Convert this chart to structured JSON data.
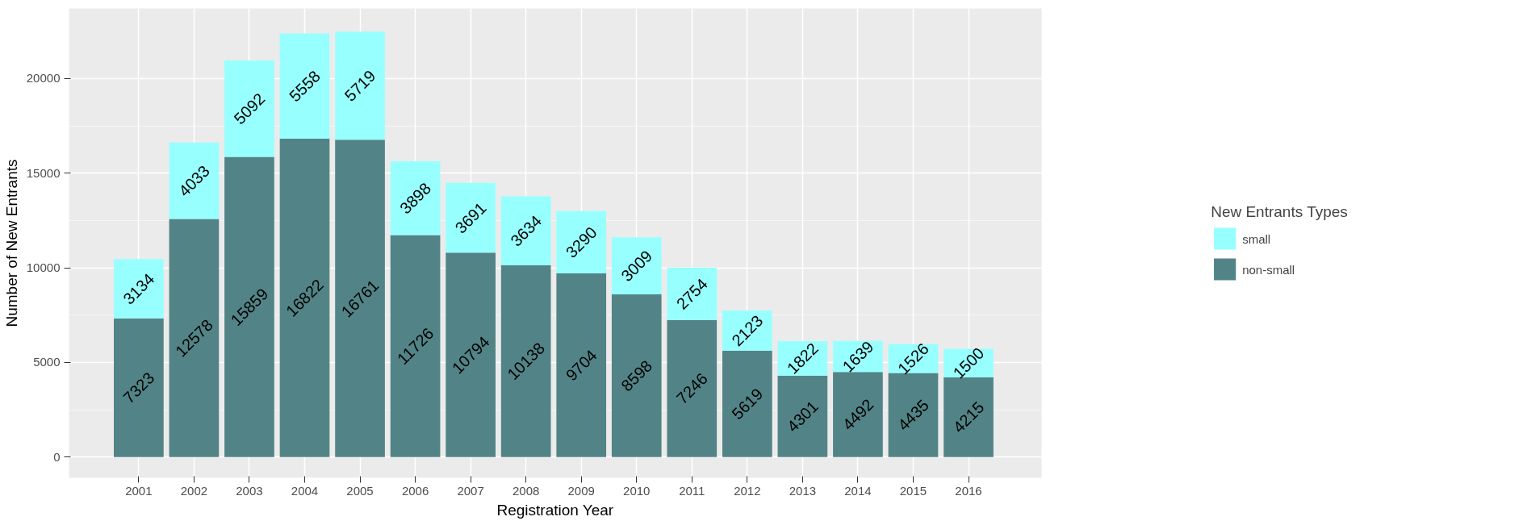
{
  "chart_data": {
    "type": "bar",
    "stacked": true,
    "xlabel": "Registration Year",
    "ylabel": "Number of New Entrants",
    "legend_title": "New Entrants Types",
    "categories": [
      "2001",
      "2002",
      "2003",
      "2004",
      "2005",
      "2006",
      "2007",
      "2008",
      "2009",
      "2010",
      "2011",
      "2012",
      "2013",
      "2014",
      "2015",
      "2016"
    ],
    "series": [
      {
        "name": "non-small",
        "color": "#528487",
        "values": [
          7323,
          12578,
          15859,
          16822,
          16761,
          11726,
          10794,
          10138,
          9704,
          8598,
          7246,
          5619,
          4301,
          4492,
          4435,
          4215
        ]
      },
      {
        "name": "small",
        "color": "#98ffff",
        "values": [
          3134,
          4033,
          5092,
          5558,
          5719,
          3898,
          3691,
          3634,
          3290,
          3009,
          2754,
          2123,
          1822,
          1639,
          1526,
          1500
        ]
      }
    ],
    "ylim": [
      -1100,
      23700
    ],
    "yticks": [
      0,
      5000,
      10000,
      15000,
      20000
    ],
    "grid": true,
    "legend": "right",
    "data_labels": true
  }
}
